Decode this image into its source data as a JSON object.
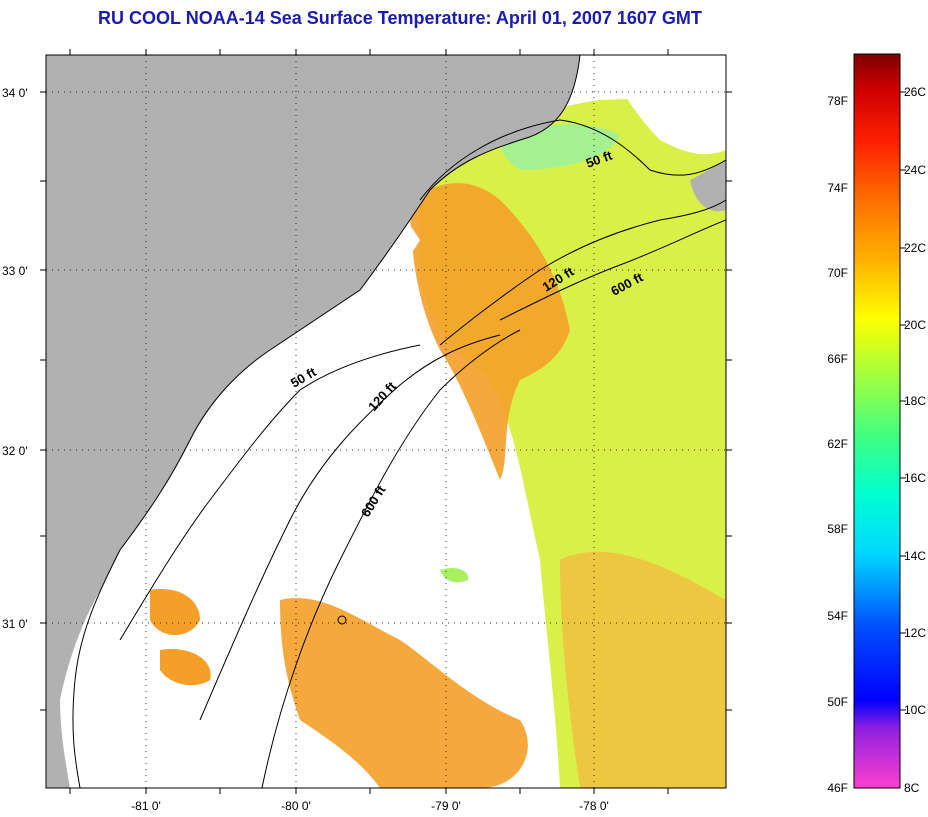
{
  "title": "RU COOL  NOAA-14  Sea Surface Temperature:  April 01, 2007 1607 GMT",
  "map": {
    "lat_labels": [
      "34 0'",
      "33 0'",
      "32 0'",
      "31 0'"
    ],
    "lon_labels": [
      "-81 0'",
      "-80 0'",
      "-79 0'",
      "-78 0'"
    ],
    "contour_labels": [
      "50 ft",
      "120 ft",
      "600 ft",
      "50 ft",
      "120 ft",
      "600 ft"
    ],
    "colors": {
      "land": "#b1b1b1",
      "cloud": "#ffffff",
      "warm": "#f4a028",
      "cool": "#d8f048"
    }
  },
  "colorbar": {
    "fahrenheit_labels": [
      "78F",
      "74F",
      "70F",
      "66F",
      "62F",
      "58F",
      "54F",
      "50F",
      "46F"
    ],
    "celsius_labels": [
      "26C",
      "24C",
      "22C",
      "20C",
      "18C",
      "16C",
      "14C",
      "12C",
      "10C",
      "8C"
    ]
  }
}
